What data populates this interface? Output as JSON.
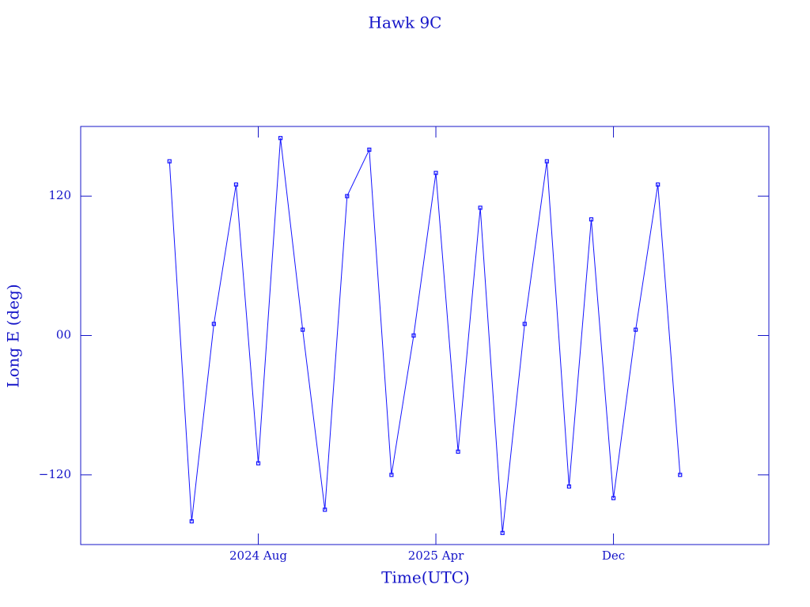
{
  "chart_data": {
    "type": "line",
    "title": "Hawk 9C",
    "x_label": "Time(UTC)",
    "y_label": "Long E (deg)",
    "x": [
      "2024-04",
      "2024-05",
      "2024-06",
      "2024-07",
      "2024-08",
      "2024-09",
      "2024-10",
      "2024-11",
      "2024-12",
      "2025-01",
      "2025-02",
      "2025-03",
      "2025-04",
      "2025-05",
      "2025-06",
      "2025-07",
      "2025-08",
      "2025-09",
      "2025-10",
      "2025-11",
      "2025-12",
      "2026-01",
      "2026-02",
      "2026-03"
    ],
    "series": [
      {
        "color": "#1414ff",
        "values": [
          150,
          -160,
          10,
          130,
          -110,
          170,
          5,
          -150,
          120,
          160,
          -120,
          0,
          140,
          -100,
          110,
          -170,
          10,
          150,
          -130,
          100,
          -140,
          5,
          130,
          -120
        ]
      }
    ],
    "xlim": [
      "2023-12",
      "2026-07"
    ],
    "xticks": [
      {
        "value": "2024-08",
        "label": "2024 Aug"
      },
      {
        "value": "2025-04",
        "label": "2025 Apr"
      },
      {
        "value": "2025-12",
        "label": "Dec"
      }
    ],
    "ylim": [
      -180,
      180
    ],
    "yticks": [
      {
        "value": -120,
        "label": "−120"
      },
      {
        "value": 0,
        "label": "00"
      },
      120
    ],
    "markers": true
  }
}
